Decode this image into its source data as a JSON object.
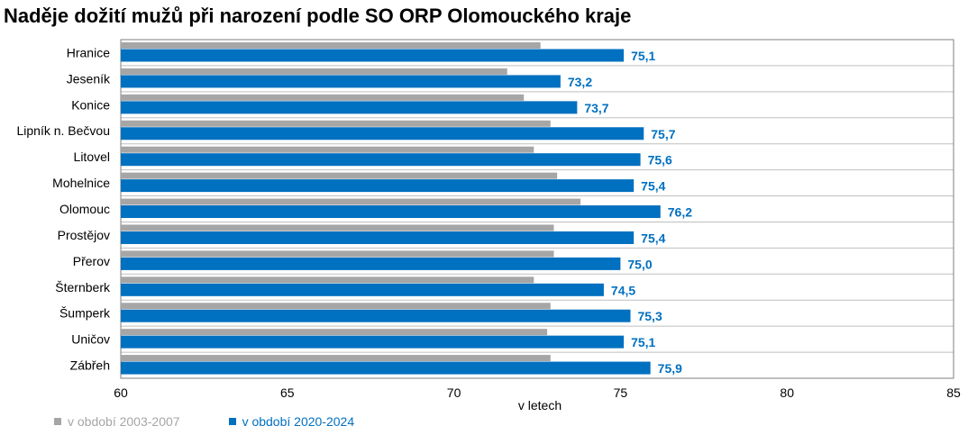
{
  "chart_data": {
    "type": "bar",
    "orientation": "horizontal",
    "title": "Naděje dožití mužů při narození podle SO ORP Olomouckého kraje",
    "xlabel": "v letech",
    "ylabel": "",
    "xlim": [
      60,
      85
    ],
    "ticks": [
      60,
      65,
      70,
      75,
      80,
      85
    ],
    "tick_labels": [
      "60",
      "65",
      "70",
      "75",
      "80",
      "85"
    ],
    "categories": [
      "Hranice",
      "Jeseník",
      "Konice",
      "Lipník n. Bečvou",
      "Litovel",
      "Mohelnice",
      "Olomouc",
      "Prostějov",
      "Přerov",
      "Šternberk",
      "Šumperk",
      "Uničov",
      "Zábřeh"
    ],
    "series": [
      {
        "name": "v období 2003-2007",
        "color": "#a6a6a6",
        "values": [
          72.6,
          71.6,
          72.1,
          72.9,
          72.4,
          73.1,
          73.8,
          73.0,
          73.0,
          72.4,
          72.9,
          72.8,
          72.9
        ]
      },
      {
        "name": "v období 2020-2024",
        "color": "#0070c0",
        "values": [
          75.1,
          73.2,
          73.7,
          75.7,
          75.6,
          75.4,
          76.2,
          75.4,
          75.0,
          74.5,
          75.3,
          75.1,
          75.9
        ],
        "labels": [
          "75,1",
          "73,2",
          "73,7",
          "75,7",
          "75,6",
          "75,4",
          "76,2",
          "75,4",
          "75,0",
          "74,5",
          "75,3",
          "75,1",
          "75,9"
        ]
      }
    ],
    "grid": true,
    "legend_position": "bottom-left"
  }
}
